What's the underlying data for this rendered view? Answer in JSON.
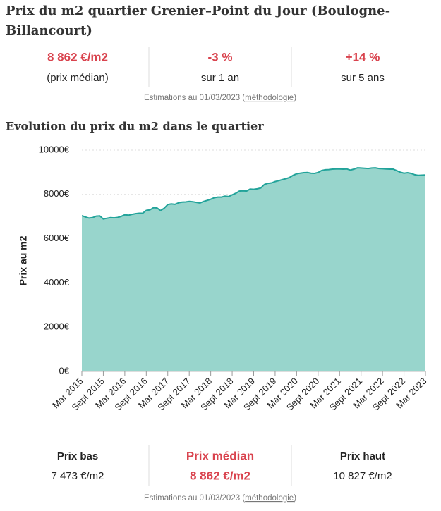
{
  "header": {
    "title_line1": "Prix du m2 quartier Grenier–Point du Jour (Boulogne-",
    "title_line2": "Billancourt)"
  },
  "top_stats": [
    {
      "value": "8 862 €/m2",
      "label": "(prix médian)"
    },
    {
      "value": "-3 %",
      "label": "sur 1 an"
    },
    {
      "value": "+14 %",
      "label": "sur 5 ans"
    }
  ],
  "top_note": {
    "text": "Estimations au 01/03/2023 (",
    "link": "méthodologie",
    "end": ")"
  },
  "chart_data": {
    "type": "area",
    "title": "Evolution du prix du m2 dans le quartier",
    "y_label": "Prix au m2",
    "categories": [
      "Mar 2015",
      null,
      null,
      null,
      null,
      null,
      "Sept 2015",
      null,
      null,
      null,
      null,
      null,
      "Mar 2016",
      null,
      null,
      null,
      null,
      null,
      "Sept 2016",
      null,
      null,
      null,
      null,
      null,
      "Mar 2017",
      null,
      null,
      null,
      null,
      null,
      "Sept 2017",
      null,
      null,
      null,
      null,
      null,
      "Mar 2018",
      null,
      null,
      null,
      null,
      null,
      "Sept 2018",
      null,
      null,
      null,
      null,
      null,
      "Mar 2019",
      null,
      null,
      null,
      null,
      null,
      "Sept 2019",
      null,
      null,
      null,
      null,
      null,
      "Mar 2020",
      null,
      null,
      null,
      null,
      null,
      "Sept 2020",
      null,
      null,
      null,
      null,
      null,
      "Mar 2021",
      null,
      null,
      null,
      null,
      null,
      "Sept 2021",
      null,
      null,
      null,
      null,
      null,
      "Mar 2022",
      null,
      null,
      null,
      null,
      null,
      "Sept 2022",
      null,
      null,
      null,
      null,
      null,
      "Mar 2023"
    ],
    "series": [
      {
        "color": "#22a39a",
        "fill": "#98d5cc",
        "values": [
          7040,
          6980,
          6930,
          6950,
          7020,
          7030,
          6890,
          6920,
          6950,
          6940,
          6960,
          7010,
          7080,
          7060,
          7100,
          7130,
          7150,
          7150,
          7280,
          7300,
          7400,
          7390,
          7270,
          7380,
          7540,
          7570,
          7550,
          7620,
          7650,
          7660,
          7680,
          7670,
          7640,
          7610,
          7680,
          7730,
          7780,
          7850,
          7880,
          7880,
          7920,
          7900,
          7980,
          8050,
          8150,
          8160,
          8150,
          8240,
          8230,
          8250,
          8290,
          8450,
          8500,
          8520,
          8580,
          8620,
          8670,
          8710,
          8760,
          8860,
          8930,
          8960,
          8980,
          8990,
          8960,
          8950,
          8990,
          9080,
          9110,
          9120,
          9140,
          9150,
          9150,
          9140,
          9150,
          9100,
          9140,
          9200,
          9190,
          9180,
          9170,
          9190,
          9200,
          9170,
          9160,
          9150,
          9140,
          9140,
          9070,
          9000,
          8960,
          8980,
          8950,
          8890,
          8860,
          8870,
          8880
        ]
      }
    ],
    "ylim": [
      0,
      10000
    ],
    "yticks": [
      {
        "value": 0,
        "label": "0€"
      },
      {
        "value": 2000,
        "label": "2000€"
      },
      {
        "value": 4000,
        "label": "4000€"
      },
      {
        "value": 6000,
        "label": "6000€"
      },
      {
        "value": 8000,
        "label": "8000€"
      },
      {
        "value": 10000,
        "label": "10000€"
      }
    ],
    "grid": true
  },
  "bottom_stats": [
    {
      "label": "Prix bas",
      "value": "7 473 €/m2"
    },
    {
      "label": "Prix médian",
      "value": "8 862 €/m2"
    },
    {
      "label": "Prix haut",
      "value": "10 827 €/m2"
    }
  ],
  "bottom_note": {
    "text": "Estimations au 01/03/2023 (",
    "link": "méthodologie",
    "end": ")"
  }
}
